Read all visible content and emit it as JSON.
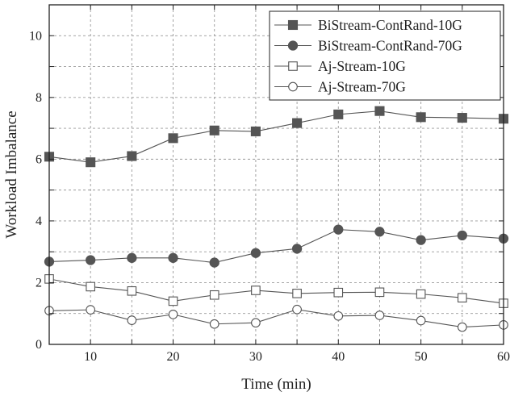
{
  "chart_data": {
    "type": "line",
    "title": "",
    "xlabel": "Time (min)",
    "ylabel": "Workload Imbalance",
    "xlim": [
      5,
      60
    ],
    "ylim": [
      0,
      11
    ],
    "x_ticks": [
      10,
      20,
      30,
      40,
      50,
      60
    ],
    "y_ticks": [
      0,
      2,
      4,
      6,
      8,
      10
    ],
    "grid": true,
    "legend_position": "top-right",
    "x": [
      5,
      10,
      15,
      20,
      25,
      30,
      35,
      40,
      45,
      50,
      55,
      60
    ],
    "series": [
      {
        "name": "BiStream-ContRand-10G",
        "marker": "filled-square",
        "color": "#555555",
        "values": [
          6.08,
          5.9,
          6.1,
          6.68,
          6.93,
          6.9,
          7.17,
          7.45,
          7.56,
          7.36,
          7.34,
          7.31
        ]
      },
      {
        "name": "BiStream-ContRand-70G",
        "marker": "filled-circle",
        "color": "#555555",
        "values": [
          2.68,
          2.73,
          2.8,
          2.8,
          2.65,
          2.96,
          3.1,
          3.72,
          3.65,
          3.38,
          3.53,
          3.43
        ]
      },
      {
        "name": "Aj-Stream-10G",
        "marker": "open-square",
        "color": "#555555",
        "values": [
          2.12,
          1.87,
          1.73,
          1.4,
          1.6,
          1.75,
          1.65,
          1.68,
          1.69,
          1.63,
          1.51,
          1.33
        ]
      },
      {
        "name": "Aj-Stream-70G",
        "marker": "open-circle",
        "color": "#555555",
        "values": [
          1.09,
          1.12,
          0.78,
          0.97,
          0.66,
          0.7,
          1.13,
          0.92,
          0.94,
          0.77,
          0.56,
          0.63
        ]
      }
    ]
  }
}
